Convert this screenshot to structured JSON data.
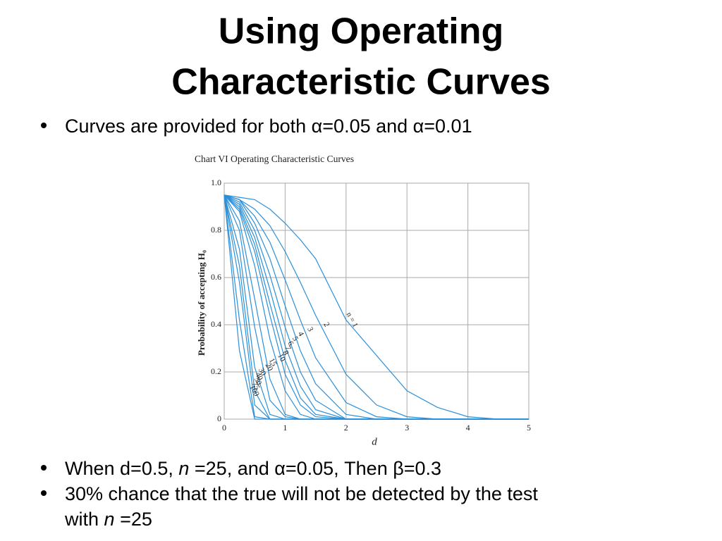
{
  "slide": {
    "title": [
      "Using Operating",
      "Characteristic Curves"
    ],
    "bullets": [
      [
        "Curves are provided for both α=0.05 and α=0.01"
      ],
      [
        "When d=0.5, ",
        "n",
        " =25, and α=0.05, Then β=0.3"
      ],
      [
        "30% chance that the true will not be detected by the test",
        "with ",
        "n",
        " =25"
      ]
    ]
  },
  "chart_data": {
    "type": "line",
    "title": "Chart VI   Operating Characteristic Curves",
    "xlabel": "d",
    "ylabel": "Probability of accepting H₀",
    "x": [
      0,
      0.25,
      0.5,
      0.75,
      1,
      1.25,
      1.5,
      2,
      2.5,
      3,
      3.5,
      4,
      4.5,
      5
    ],
    "xlim": [
      0,
      5
    ],
    "xticks": [
      0,
      1,
      2,
      3,
      4,
      5
    ],
    "ylim": [
      0,
      1
    ],
    "yticks": [
      0,
      0.2,
      0.4,
      0.6,
      0.8,
      {
        "value": 1,
        "label": "1.0"
      }
    ],
    "grid": true,
    "color": "#2b8fd9",
    "series": [
      {
        "name": "n = 1",
        "values": [
          0.95,
          0.94,
          0.93,
          0.89,
          0.83,
          0.76,
          0.68,
          0.42,
          0.27,
          0.12,
          0.05,
          0.01,
          0,
          0
        ]
      },
      {
        "name": "2",
        "values": [
          0.95,
          0.93,
          0.89,
          0.82,
          0.71,
          0.58,
          0.44,
          0.19,
          0.06,
          0.01,
          0,
          0,
          0,
          0
        ]
      },
      {
        "name": "3",
        "values": [
          0.95,
          0.93,
          0.86,
          0.75,
          0.59,
          0.42,
          0.26,
          0.07,
          0.01,
          0,
          0,
          0,
          0,
          0
        ]
      },
      {
        "name": "4",
        "values": [
          0.95,
          0.93,
          0.83,
          0.68,
          0.48,
          0.29,
          0.15,
          0.02,
          0,
          0,
          0,
          0,
          0,
          0
        ]
      },
      {
        "name": "5",
        "values": [
          0.95,
          0.92,
          0.8,
          0.61,
          0.39,
          0.2,
          0.08,
          0,
          0,
          0,
          0,
          0,
          0,
          0
        ]
      },
      {
        "name": "6",
        "values": [
          0.95,
          0.91,
          0.77,
          0.55,
          0.31,
          0.14,
          0.04,
          0,
          0,
          0,
          0,
          0,
          0,
          0
        ]
      },
      {
        "name": "7",
        "values": [
          0.95,
          0.9,
          0.74,
          0.49,
          0.25,
          0.09,
          0.02,
          0,
          0,
          0,
          0,
          0,
          0,
          0
        ]
      },
      {
        "name": "8",
        "values": [
          0.95,
          0.89,
          0.71,
          0.44,
          0.19,
          0.06,
          0.01,
          0,
          0,
          0,
          0,
          0,
          0,
          0
        ]
      },
      {
        "name": "10",
        "values": [
          0.95,
          0.88,
          0.65,
          0.34,
          0.12,
          0.02,
          0,
          0,
          0,
          0,
          0,
          0,
          0,
          0
        ]
      },
      {
        "name": "15",
        "values": [
          0.95,
          0.84,
          0.51,
          0.17,
          0.02,
          0,
          0,
          0,
          0,
          0,
          0,
          0,
          0,
          0
        ]
      },
      {
        "name": "20",
        "values": [
          0.95,
          0.8,
          0.39,
          0.08,
          0.01,
          0,
          0,
          0,
          0,
          0,
          0,
          0,
          0,
          0
        ]
      },
      {
        "name": "30",
        "values": [
          0.95,
          0.72,
          0.22,
          0.02,
          0,
          0,
          0,
          0,
          0,
          0,
          0,
          0,
          0,
          0
        ]
      },
      {
        "name": "40",
        "values": [
          0.95,
          0.65,
          0.12,
          0,
          0,
          0,
          0,
          0,
          0,
          0,
          0,
          0,
          0,
          0
        ]
      },
      {
        "name": "50",
        "values": [
          0.95,
          0.58,
          0.06,
          0,
          0,
          0,
          0,
          0,
          0,
          0,
          0,
          0,
          0,
          0
        ]
      },
      {
        "name": "75",
        "values": [
          0.95,
          0.42,
          0.01,
          0,
          0,
          0,
          0,
          0,
          0,
          0,
          0,
          0,
          0,
          0
        ]
      },
      {
        "name": "100",
        "values": [
          0.95,
          0.29,
          0,
          0,
          0,
          0,
          0,
          0,
          0,
          0,
          0,
          0,
          0,
          0
        ]
      }
    ]
  }
}
